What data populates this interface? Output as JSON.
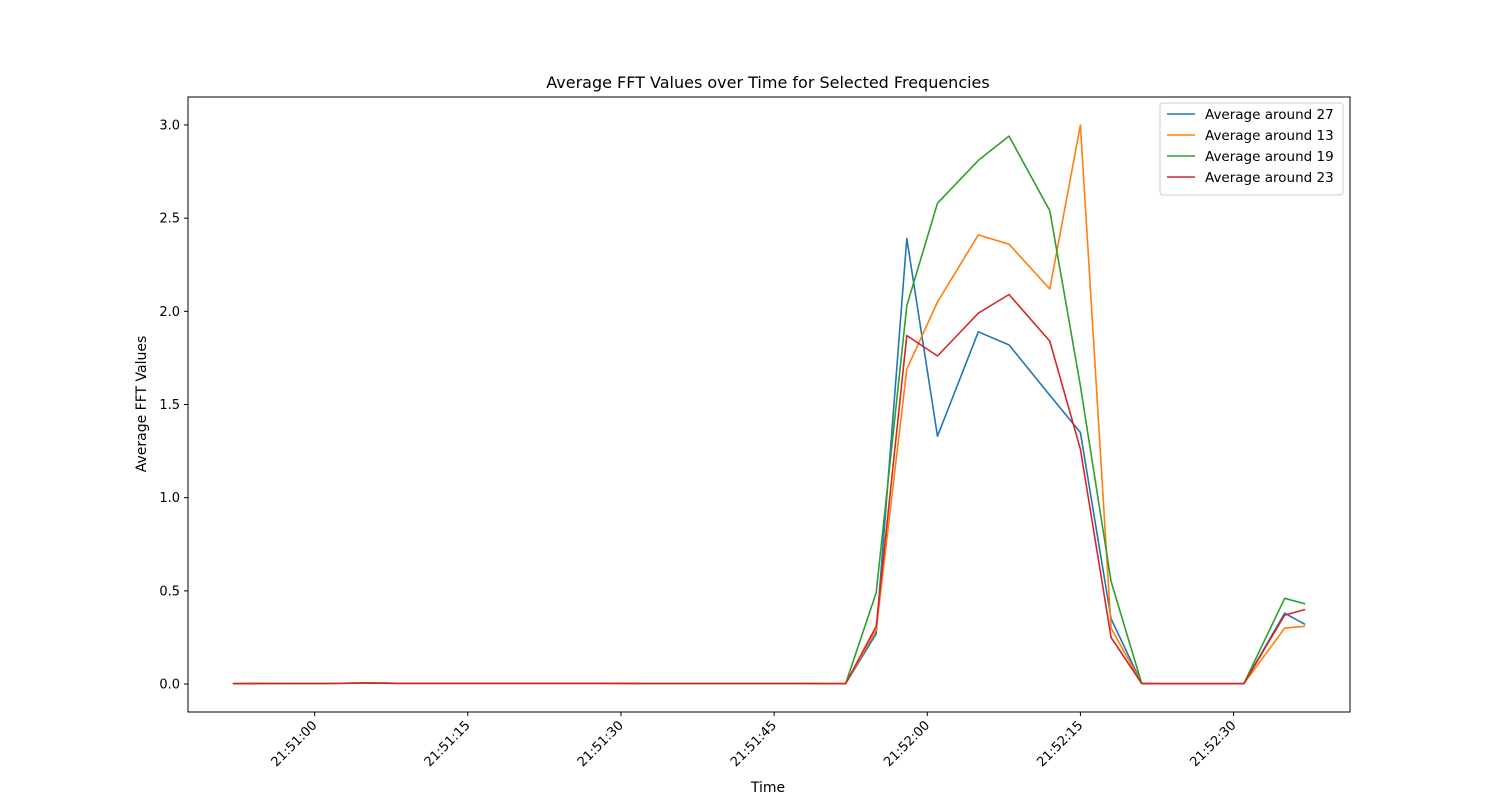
{
  "chart_data": {
    "type": "line",
    "title": "Average FFT Values over Time for Selected Frequencies",
    "xlabel": "Time",
    "ylabel": "Average FFT Values",
    "x": [
      "21:50:52",
      "21:50:55",
      "21:50:58",
      "21:51:01",
      "21:51:05",
      "21:51:08",
      "21:51:11",
      "21:51:15",
      "21:51:18",
      "21:51:22",
      "21:51:25",
      "21:51:28",
      "21:51:32",
      "21:51:35",
      "21:51:38",
      "21:51:42",
      "21:51:45",
      "21:51:48",
      "21:51:52",
      "21:51:55",
      "21:51:58",
      "21:52:01",
      "21:52:05",
      "21:52:08",
      "21:52:12",
      "21:52:15",
      "21:52:18",
      "21:52:21",
      "21:52:23",
      "21:52:27",
      "21:52:31",
      "21:52:35",
      "21:52:37"
    ],
    "x_ticks": [
      "21:51:00",
      "21:51:15",
      "21:51:30",
      "21:51:45",
      "21:52:00",
      "21:52:15",
      "21:52:30"
    ],
    "xlim": [
      "21:50:47.6",
      "21:52:41.4"
    ],
    "y_ticks": [
      "0.0",
      "0.5",
      "1.0",
      "1.5",
      "2.0",
      "2.5",
      "3.0"
    ],
    "ylim": [
      -0.15,
      3.15
    ],
    "grid": false,
    "legend_position": "upper right",
    "series": [
      {
        "name": "Average around 27",
        "color": "#1f77b4",
        "values": [
          0.002,
          0.003,
          0.003,
          0.003,
          0.005,
          0.004,
          0.004,
          0.004,
          0.004,
          0.004,
          0.004,
          0.004,
          0.003,
          0.003,
          0.003,
          0.003,
          0.003,
          0.003,
          0.002,
          0.27,
          2.39,
          1.33,
          1.89,
          1.82,
          1.55,
          1.35,
          0.35,
          0.003,
          0.002,
          0.002,
          0.002,
          0.38,
          0.32
        ]
      },
      {
        "name": "Average around 13",
        "color": "#ff7f0e",
        "values": [
          0.002,
          0.003,
          0.003,
          0.003,
          0.006,
          0.004,
          0.004,
          0.004,
          0.004,
          0.004,
          0.004,
          0.004,
          0.003,
          0.003,
          0.003,
          0.003,
          0.003,
          0.003,
          0.002,
          0.29,
          1.69,
          2.05,
          2.41,
          2.36,
          2.12,
          3.0,
          0.3,
          0.003,
          0.002,
          0.002,
          0.002,
          0.3,
          0.31
        ]
      },
      {
        "name": "Average around 19",
        "color": "#2ca02c",
        "values": [
          0.002,
          0.003,
          0.003,
          0.003,
          0.005,
          0.004,
          0.004,
          0.004,
          0.004,
          0.004,
          0.004,
          0.004,
          0.003,
          0.003,
          0.003,
          0.003,
          0.003,
          0.003,
          0.002,
          0.49,
          2.03,
          2.58,
          2.81,
          2.94,
          2.54,
          1.6,
          0.55,
          0.003,
          0.002,
          0.002,
          0.002,
          0.46,
          0.43
        ]
      },
      {
        "name": "Average around 23",
        "color": "#d62728",
        "values": [
          0.002,
          0.003,
          0.003,
          0.003,
          0.006,
          0.004,
          0.004,
          0.004,
          0.004,
          0.004,
          0.004,
          0.004,
          0.003,
          0.003,
          0.003,
          0.003,
          0.003,
          0.003,
          0.002,
          0.31,
          1.87,
          1.76,
          1.99,
          2.09,
          1.84,
          1.26,
          0.25,
          0.003,
          0.002,
          0.002,
          0.002,
          0.37,
          0.4
        ]
      }
    ]
  }
}
